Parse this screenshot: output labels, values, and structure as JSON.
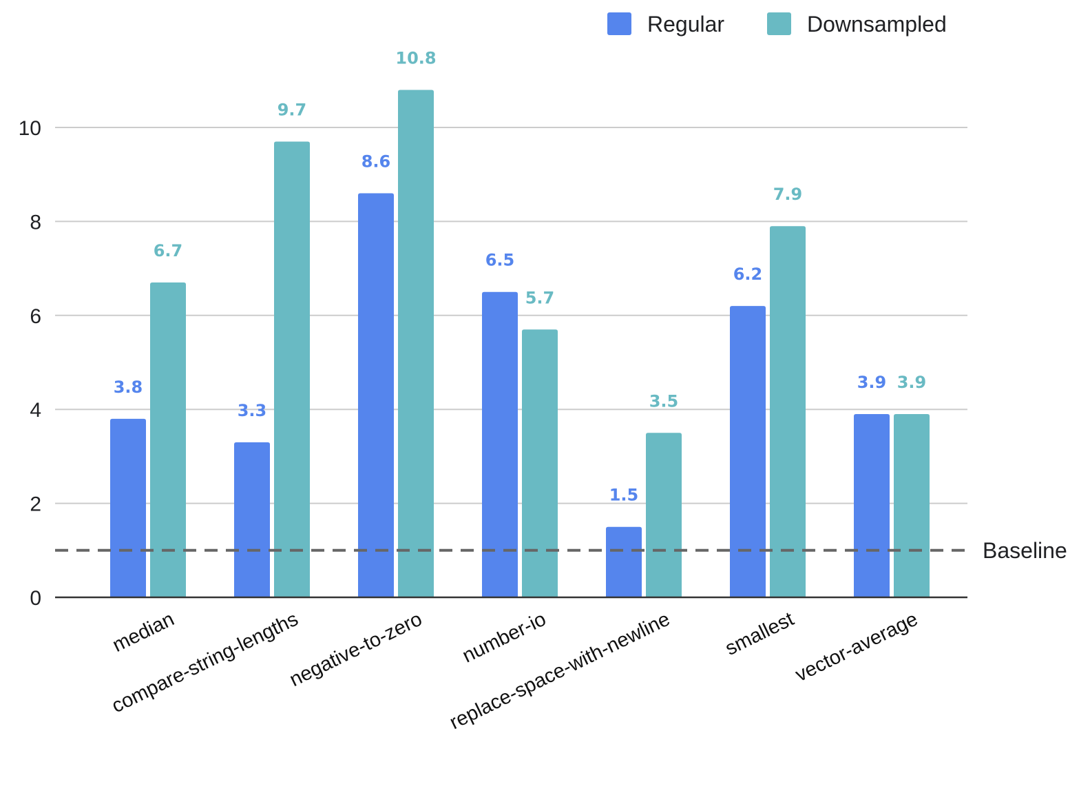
{
  "chart_data": {
    "type": "bar",
    "title": "",
    "xlabel": "",
    "ylabel": "",
    "ylim": [
      0,
      11
    ],
    "yticks": [
      0,
      2,
      4,
      6,
      8,
      10
    ],
    "grid": true,
    "legend_position": "top-right",
    "categories": [
      "median",
      "compare-string-lengths",
      "negative-to-zero",
      "number-io",
      "replace-space-with-newline",
      "smallest",
      "vector-average"
    ],
    "series": [
      {
        "name": "Regular",
        "color": "#5585ED",
        "values": [
          3.8,
          3.3,
          8.6,
          6.5,
          1.5,
          6.2,
          3.9
        ]
      },
      {
        "name": "Downsampled",
        "color": "#69BAC3",
        "values": [
          6.7,
          9.7,
          10.8,
          5.7,
          3.5,
          7.9,
          3.9
        ]
      }
    ],
    "baseline": {
      "label": "Baseline",
      "value": 1,
      "color": "#666666"
    }
  }
}
